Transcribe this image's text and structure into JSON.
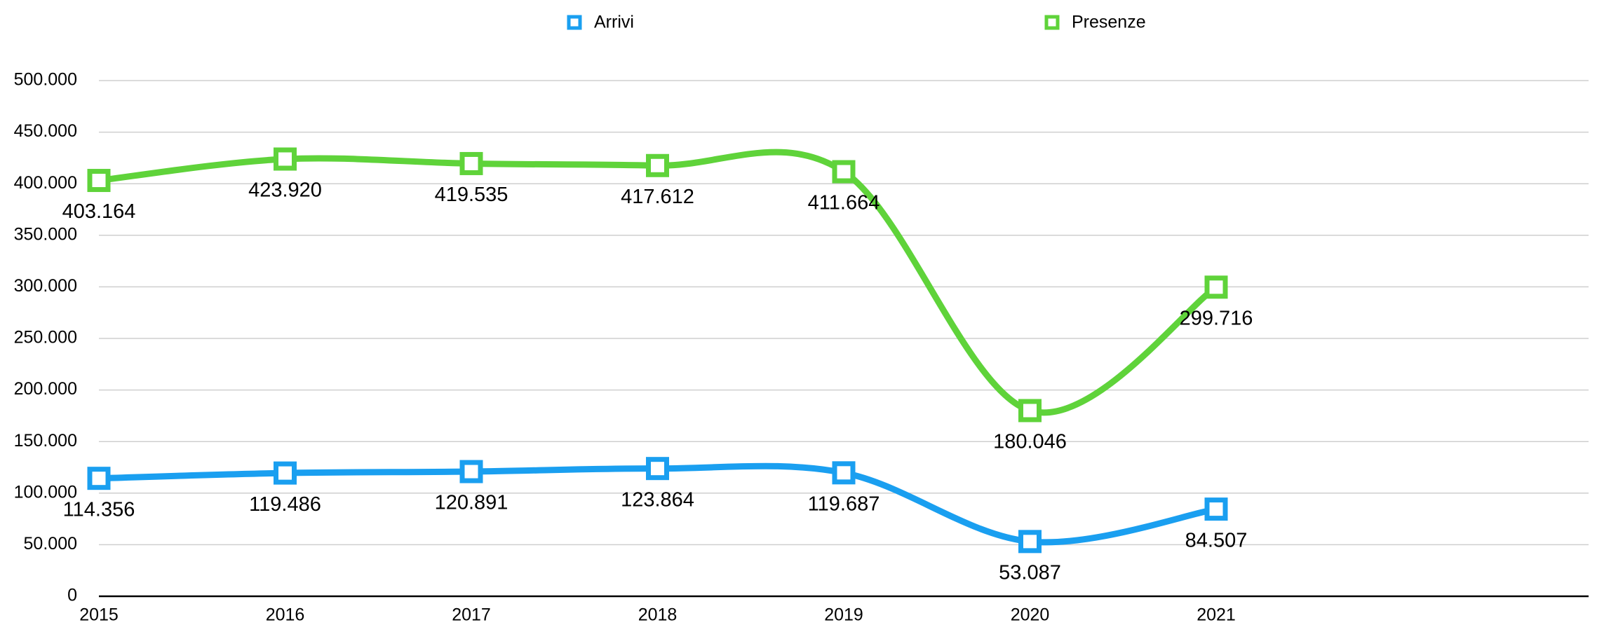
{
  "chart_data": {
    "type": "line",
    "categories": [
      "2015",
      "2016",
      "2017",
      "2018",
      "2019",
      "2020",
      "2021",
      null,
      null
    ],
    "series": [
      {
        "name": "Arrivi",
        "color": "#1a9ff0",
        "values": [
          114356,
          119486,
          120891,
          123864,
          119687,
          53087,
          84507,
          null,
          null
        ],
        "value_labels": [
          "114.356",
          "119.486",
          "120.891",
          "123.864",
          "119.687",
          "53.087",
          "84.507",
          null,
          null
        ]
      },
      {
        "name": "Presenze",
        "color": "#5fd33a",
        "values": [
          403164,
          423920,
          419535,
          417612,
          411664,
          180046,
          299716,
          null,
          null
        ],
        "value_labels": [
          "403.164",
          "423.920",
          "419.535",
          "417.612",
          "411.664",
          "180.046",
          "299.716",
          null,
          null
        ]
      }
    ],
    "ylim": [
      0,
      500000
    ],
    "yticks": [
      0,
      {
        "value": 50000,
        "label": "50.000"
      },
      {
        "value": 100000,
        "label": "100.000"
      },
      {
        "value": 150000,
        "label": "150.000"
      },
      {
        "value": 200000,
        "label": "200.000"
      },
      {
        "value": 250000,
        "label": "250.000"
      },
      {
        "value": 300000,
        "label": "300.000"
      },
      {
        "value": 350000,
        "label": "350.000"
      },
      {
        "value": 400000,
        "label": "400.000"
      },
      {
        "value": 450000,
        "label": "450.000"
      },
      {
        "value": 500000,
        "label": "500.000"
      }
    ],
    "grid": true,
    "legend": "top"
  }
}
